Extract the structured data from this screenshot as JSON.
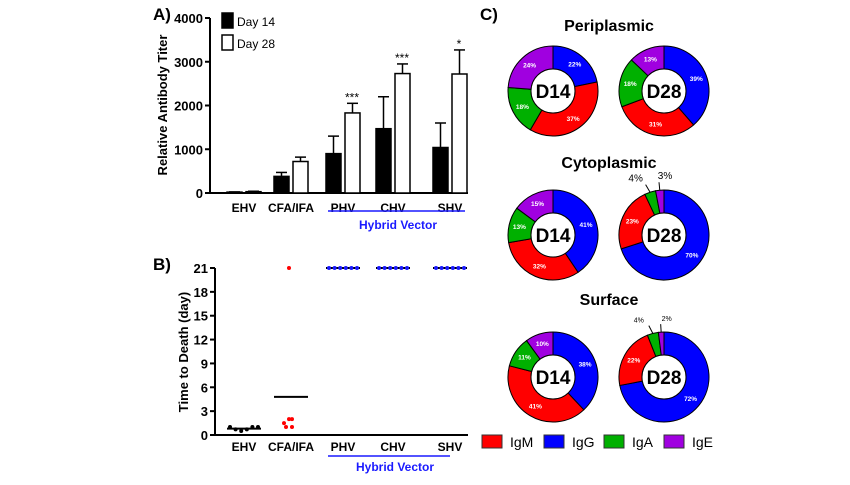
{
  "chart_data": [
    {
      "panel": "A)",
      "type": "bar",
      "ylabel": "Relative Antibody Titer",
      "ylim": [
        0,
        4000
      ],
      "yticks": [
        0,
        1000,
        2000,
        3000,
        4000
      ],
      "categories": [
        "EHV",
        "CFA/IFA",
        "PHV",
        "CHV",
        "SHV"
      ],
      "group_label": "Hybrid Vector",
      "group_color": "#1a1aff",
      "series": [
        {
          "name": "Day 14",
          "fill": "#000000",
          "values": [
            20,
            380,
            900,
            1470,
            1040
          ],
          "error_upper": [
            25,
            470,
            1300,
            2200,
            1600
          ]
        },
        {
          "name": "Day 28",
          "fill": "#ffffff",
          "values": [
            30,
            720,
            1830,
            2730,
            2720
          ],
          "error_upper": [
            40,
            820,
            2050,
            2950,
            3270
          ]
        }
      ],
      "significance": [
        "",
        "",
        "***",
        "***",
        "*"
      ]
    },
    {
      "panel": "B)",
      "type": "scatter",
      "ylabel": "Time to Death (day)",
      "ylim": [
        0,
        21
      ],
      "yticks": [
        0,
        3,
        6,
        9,
        12,
        15,
        18,
        21
      ],
      "categories": [
        "EHV",
        "CFA/IFA",
        "PHV",
        "CHV",
        "SHV"
      ],
      "group_label": "Hybrid Vector",
      "groups": [
        {
          "color": "#000000",
          "points": [
            1,
            0.7,
            0.5,
            0.7,
            1,
            1
          ],
          "mean": 0.8
        },
        {
          "color": "#ff0000",
          "points": [
            21,
            1.5,
            2,
            2,
            1,
            1
          ],
          "mean": 4.8
        },
        {
          "color": "#1a1aff",
          "points": [
            21,
            21,
            21,
            21,
            21,
            21
          ],
          "mean": 21
        },
        {
          "color": "#1a1aff",
          "points": [
            21,
            21,
            21,
            21,
            21,
            21
          ],
          "mean": 21
        },
        {
          "color": "#1a1aff",
          "points": [
            21,
            21,
            21,
            21,
            21,
            21
          ],
          "mean": 21
        }
      ]
    },
    {
      "panel": "C)",
      "type": "pie",
      "order": [
        "IgG",
        "IgM",
        "IgA",
        "IgE"
      ],
      "colors": {
        "IgM": "#ff0000",
        "IgG": "#0000ff",
        "IgA": "#00b000",
        "IgE": "#a000e0"
      },
      "legend": [
        "IgM",
        "IgG",
        "IgA",
        "IgE"
      ],
      "sections": [
        {
          "title": "Periplasmic",
          "donuts": [
            {
              "label": "D14",
              "values": [
                22,
                37,
                18,
                24
              ]
            },
            {
              "label": "D28",
              "values": [
                39,
                31,
                18,
                13
              ]
            }
          ]
        },
        {
          "title": "Cytoplasmic",
          "donuts": [
            {
              "label": "D14",
              "values": [
                41,
                32,
                13,
                15
              ]
            },
            {
              "label": "D28",
              "values": [
                70,
                23,
                4,
                3
              ]
            }
          ]
        },
        {
          "title": "Surface",
          "donuts": [
            {
              "label": "D14",
              "values": [
                38,
                41,
                11,
                10
              ]
            },
            {
              "label": "D28",
              "values": [
                72,
                22,
                4,
                2
              ]
            }
          ]
        }
      ]
    }
  ]
}
